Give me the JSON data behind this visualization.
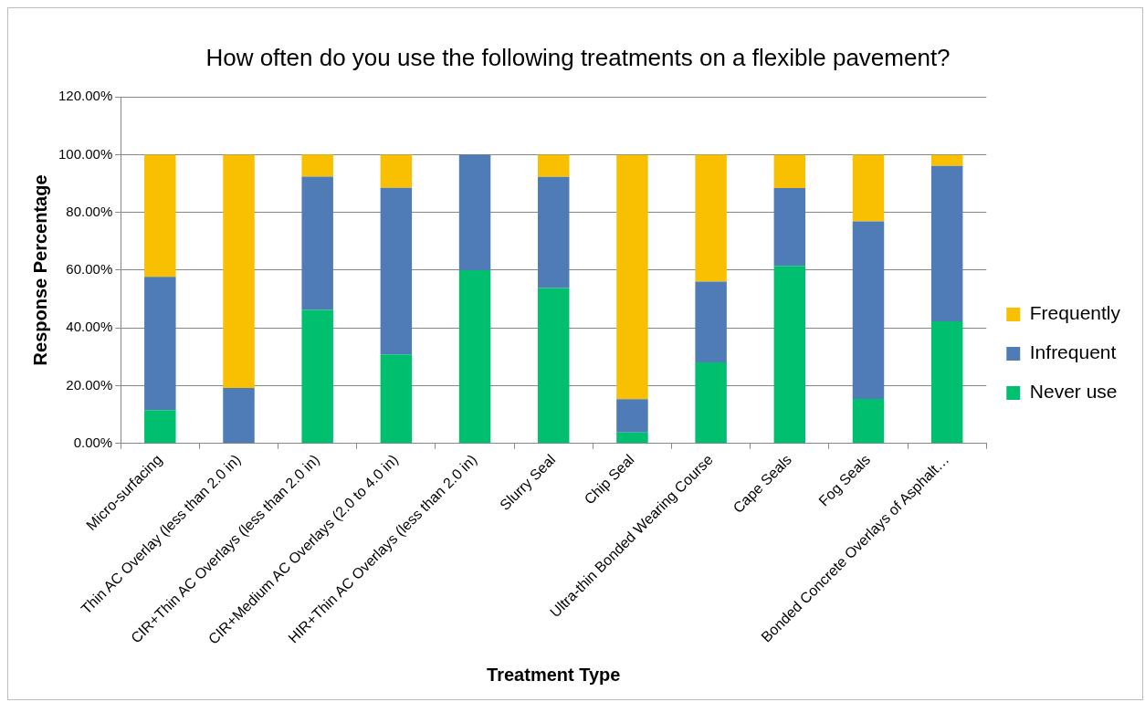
{
  "chart_data": {
    "type": "bar",
    "title": "How often do you use the following treatments on a flexible pavement?",
    "xlabel": "Treatment Type",
    "ylabel": "Response Percentage",
    "categories": [
      "Micro-surfacing",
      "Thin AC Overlay (less than 2.0 in)",
      "CIR+Thin AC Overlays (less than 2.0 in)",
      "CIR+Medium AC Overlays (2.0 to 4.0 in)",
      "HIR+Thin AC Overlays (less than 2.0 in)",
      "Slurry Seal",
      "Chip Seal",
      "Ultra-thin Bonded Wearing Course",
      "Cape Seals",
      "Fog Seals",
      "Bonded Concrete Overlays of Asphalt…"
    ],
    "series": [
      {
        "name": "Never use",
        "color": "#00bf6f",
        "values": [
          11.5,
          0,
          46.2,
          30.8,
          60,
          53.8,
          3.8,
          28,
          61.5,
          15.4,
          42.3
        ]
      },
      {
        "name": "Infrequent",
        "color": "#4f7cb6",
        "values": [
          46.2,
          19.2,
          46.2,
          57.7,
          40,
          38.5,
          11.5,
          28,
          26.9,
          61.5,
          53.8
        ]
      },
      {
        "name": "Frequently",
        "color": "#f8c000",
        "values": [
          42.3,
          80.8,
          7.7,
          11.5,
          0,
          7.7,
          84.6,
          44,
          11.5,
          23.1,
          3.8
        ]
      }
    ],
    "stacked": true,
    "ylim": [
      0,
      120
    ],
    "yticks": [
      {
        "value": 0,
        "label": "0.00%"
      },
      {
        "value": 20,
        "label": "20.00%"
      },
      {
        "value": 40,
        "label": "40.00%"
      },
      {
        "value": 60,
        "label": "60.00%"
      },
      {
        "value": 80,
        "label": "80.00%"
      },
      {
        "value": 100,
        "label": "100.00%"
      },
      {
        "value": 120,
        "label": "120.00%"
      }
    ],
    "grid": "y",
    "legend": "right"
  }
}
